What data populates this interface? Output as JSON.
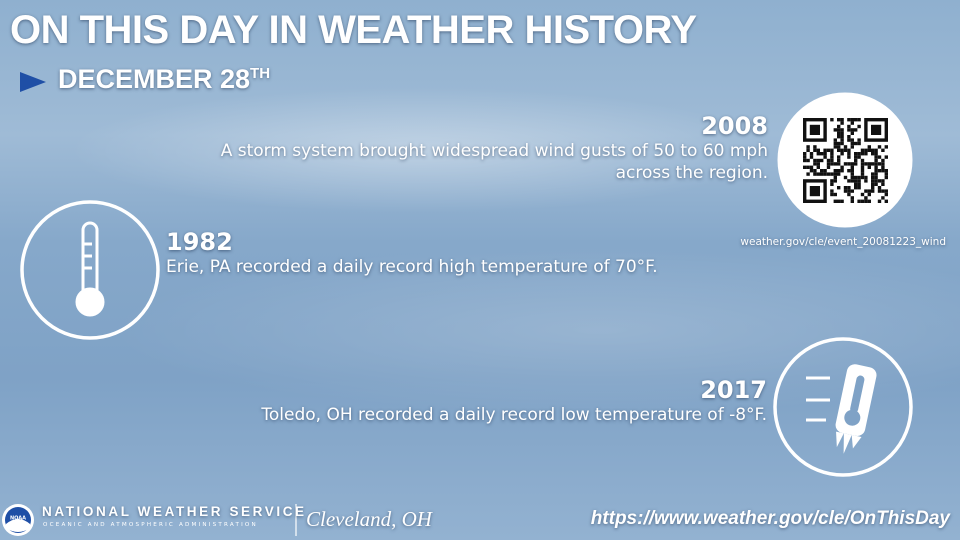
{
  "header": {
    "title": "ON THIS DAY IN WEATHER HISTORY",
    "date": "DECEMBER 28",
    "date_suffix": "TH"
  },
  "events": [
    {
      "year": "2008",
      "text": "A storm system brought widespread wind gusts of 50 to 60 mph across the region.",
      "link": "weather.gov/cle/event_20081223_wind"
    },
    {
      "year": "1982",
      "text": "Erie, PA recorded a daily record high temperature of 70°F."
    },
    {
      "year": "2017",
      "text": "Toledo, OH recorded a daily record low temperature of -8°F."
    }
  ],
  "footer": {
    "logo": "NOAA",
    "org": "NATIONAL WEATHER SERVICE",
    "org_sub": "OCEANIC AND ATMOSPHERIC ADMINISTRATION",
    "office": "Cleveland, OH",
    "url": "https://www.weather.gov/cle/OnThisDay"
  }
}
